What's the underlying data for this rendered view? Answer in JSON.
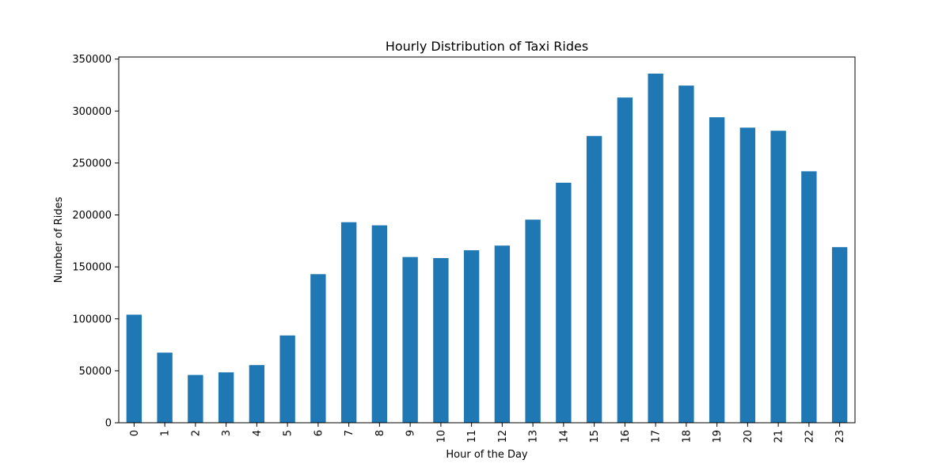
{
  "chart_data": {
    "type": "bar",
    "title": "Hourly Distribution of Taxi Rides",
    "xlabel": "Hour of the Day",
    "ylabel": "Number of Rides",
    "categories": [
      "0",
      "1",
      "2",
      "3",
      "4",
      "5",
      "6",
      "7",
      "8",
      "9",
      "10",
      "11",
      "12",
      "13",
      "14",
      "15",
      "16",
      "17",
      "18",
      "19",
      "20",
      "21",
      "22",
      "23"
    ],
    "values": [
      104000,
      67500,
      46000,
      48500,
      55500,
      84000,
      143000,
      193000,
      190000,
      159500,
      158500,
      166000,
      170500,
      195500,
      231000,
      276000,
      313000,
      336000,
      324500,
      294000,
      284000,
      281000,
      242000,
      169000
    ],
    "ylim": [
      0,
      352000
    ],
    "yticks": [
      0,
      50000,
      100000,
      150000,
      200000,
      250000,
      300000,
      350000
    ],
    "ytick_labels": [
      "0",
      "50000",
      "100000",
      "150000",
      "200000",
      "250000",
      "300000",
      "350000"
    ],
    "bar_color": "#1f77b4",
    "grid": false,
    "legend": "none"
  }
}
